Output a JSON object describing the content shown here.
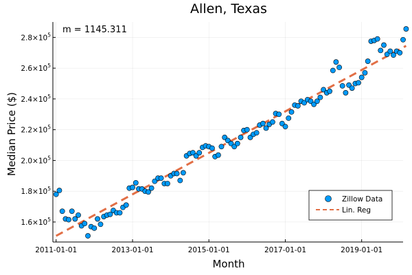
{
  "chart_data": {
    "type": "scatter",
    "title": "Allen, Texas",
    "xlabel": "Month",
    "ylabel": "Median Price ($)",
    "annotation": "m = 1145.311",
    "x_ticks": [
      "2011-01-01",
      "2013-01-01",
      "2015-01-01",
      "2017-01-01",
      "2019-01-01"
    ],
    "y_ticks": [
      {
        "value": 160000,
        "mantissa": "1.6",
        "exp": "5"
      },
      {
        "value": 180000,
        "mantissa": "1.8",
        "exp": "5"
      },
      {
        "value": 200000,
        "mantissa": "2.0",
        "exp": "5"
      },
      {
        "value": 220000,
        "mantissa": "2.2",
        "exp": "5"
      },
      {
        "value": 240000,
        "mantissa": "2.4",
        "exp": "5"
      },
      {
        "value": 260000,
        "mantissa": "2.6",
        "exp": "5"
      },
      {
        "value": 280000,
        "mantissa": "2.8",
        "exp": "5"
      }
    ],
    "y_tick_prefix": "×10",
    "xlim": [
      "2010-12-01",
      "2020-02-01"
    ],
    "ylim": [
      147000,
      290000
    ],
    "grid": true,
    "legend_position": "bottom-right",
    "series": [
      {
        "name": "Zillow Data",
        "kind": "scatter",
        "color": "#009AFA",
        "points": [
          [
            "2011-01-01",
            178000
          ],
          [
            "2011-02-01",
            180500
          ],
          [
            "2011-03-01",
            167000
          ],
          [
            "2011-04-01",
            162000
          ],
          [
            "2011-05-01",
            161500
          ],
          [
            "2011-06-01",
            167000
          ],
          [
            "2011-07-01",
            162000
          ],
          [
            "2011-08-01",
            164500
          ],
          [
            "2011-09-01",
            157500
          ],
          [
            "2011-10-01",
            159000
          ],
          [
            "2011-11-01",
            151000
          ],
          [
            "2011-12-01",
            157000
          ],
          [
            "2012-01-01",
            156000
          ],
          [
            "2012-02-01",
            162000
          ],
          [
            "2012-03-01",
            158500
          ],
          [
            "2012-04-01",
            163500
          ],
          [
            "2012-05-01",
            164500
          ],
          [
            "2012-06-01",
            165000
          ],
          [
            "2012-07-01",
            167500
          ],
          [
            "2012-08-01",
            166000
          ],
          [
            "2012-09-01",
            166000
          ],
          [
            "2012-10-01",
            169500
          ],
          [
            "2012-11-01",
            171000
          ],
          [
            "2012-12-01",
            182000
          ],
          [
            "2013-01-01",
            182500
          ],
          [
            "2013-02-01",
            185500
          ],
          [
            "2013-03-01",
            181500
          ],
          [
            "2013-04-01",
            181500
          ],
          [
            "2013-05-01",
            180000
          ],
          [
            "2013-06-01",
            179500
          ],
          [
            "2013-07-01",
            182000
          ],
          [
            "2013-08-01",
            186500
          ],
          [
            "2013-09-01",
            188500
          ],
          [
            "2013-10-01",
            188500
          ],
          [
            "2013-11-01",
            185000
          ],
          [
            "2013-12-01",
            185000
          ],
          [
            "2014-01-01",
            190000
          ],
          [
            "2014-02-01",
            191500
          ],
          [
            "2014-03-01",
            191500
          ],
          [
            "2014-04-01",
            187000
          ],
          [
            "2014-05-01",
            192000
          ],
          [
            "2014-06-01",
            203000
          ],
          [
            "2014-07-01",
            204500
          ],
          [
            "2014-08-01",
            205000
          ],
          [
            "2014-09-01",
            203000
          ],
          [
            "2014-10-01",
            205000
          ],
          [
            "2014-11-01",
            208500
          ],
          [
            "2014-12-01",
            209500
          ],
          [
            "2015-01-01",
            209000
          ],
          [
            "2015-02-01",
            208000
          ],
          [
            "2015-03-01",
            202500
          ],
          [
            "2015-04-01",
            203500
          ],
          [
            "2015-05-01",
            209000
          ],
          [
            "2015-06-01",
            215000
          ],
          [
            "2015-07-01",
            213000
          ],
          [
            "2015-08-01",
            211000
          ],
          [
            "2015-09-01",
            209000
          ],
          [
            "2015-10-01",
            211000
          ],
          [
            "2015-11-01",
            215000
          ],
          [
            "2015-12-01",
            219500
          ],
          [
            "2016-01-01",
            220000
          ],
          [
            "2016-02-01",
            215000
          ],
          [
            "2016-03-01",
            217000
          ],
          [
            "2016-04-01",
            218000
          ],
          [
            "2016-05-01",
            223000
          ],
          [
            "2016-06-01",
            224000
          ],
          [
            "2016-07-01",
            221000
          ],
          [
            "2016-08-01",
            223500
          ],
          [
            "2016-09-01",
            225000
          ],
          [
            "2016-10-01",
            230500
          ],
          [
            "2016-11-01",
            230000
          ],
          [
            "2016-12-01",
            224000
          ],
          [
            "2017-01-01",
            222000
          ],
          [
            "2017-02-01",
            227500
          ],
          [
            "2017-03-01",
            231500
          ],
          [
            "2017-04-01",
            236000
          ],
          [
            "2017-05-01",
            235500
          ],
          [
            "2017-06-01",
            238500
          ],
          [
            "2017-07-01",
            237500
          ],
          [
            "2017-08-01",
            239500
          ],
          [
            "2017-09-01",
            238500
          ],
          [
            "2017-10-01",
            236500
          ],
          [
            "2017-11-01",
            238500
          ],
          [
            "2017-12-01",
            241000
          ],
          [
            "2018-01-01",
            246000
          ],
          [
            "2018-02-01",
            244000
          ],
          [
            "2018-03-01",
            245000
          ],
          [
            "2018-04-01",
            258500
          ],
          [
            "2018-05-01",
            264000
          ],
          [
            "2018-06-01",
            260500
          ],
          [
            "2018-07-01",
            248500
          ],
          [
            "2018-08-01",
            244000
          ],
          [
            "2018-09-01",
            249000
          ],
          [
            "2018-10-01",
            247000
          ],
          [
            "2018-11-01",
            250000
          ],
          [
            "2018-12-01",
            250500
          ],
          [
            "2019-01-01",
            254000
          ],
          [
            "2019-02-01",
            257000
          ],
          [
            "2019-03-01",
            264500
          ],
          [
            "2019-04-01",
            277500
          ],
          [
            "2019-05-01",
            278000
          ],
          [
            "2019-06-01",
            279000
          ],
          [
            "2019-07-01",
            271500
          ],
          [
            "2019-08-01",
            275000
          ],
          [
            "2019-09-01",
            269000
          ],
          [
            "2019-10-01",
            271000
          ],
          [
            "2019-11-01",
            268500
          ],
          [
            "2019-12-01",
            271000
          ],
          [
            "2020-01-01",
            270000
          ],
          [
            "2020-02-01",
            278500
          ],
          [
            "2020-03-01",
            285500
          ]
        ]
      },
      {
        "name": "Lin. Reg",
        "kind": "line",
        "dashed": true,
        "color": "#E26F46",
        "points": [
          [
            "2011-01-01",
            151000
          ],
          [
            "2020-03-01",
            274500
          ]
        ]
      }
    ]
  }
}
